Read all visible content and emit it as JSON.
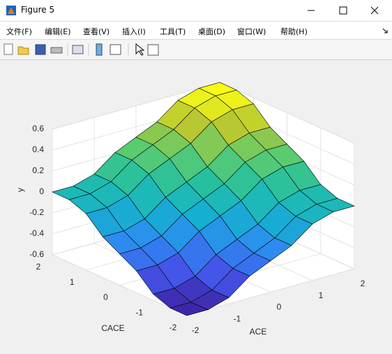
{
  "window": {
    "title": "Figure 5",
    "menu": [
      "文件(F)",
      "编辑(E)",
      "查看(V)",
      "插入(I)",
      "工具(T)",
      "桌面(D)",
      "窗口(W)",
      "帮助(H)"
    ]
  },
  "chart_data": {
    "type": "surface",
    "xlabel": "ACE",
    "ylabel": "CACE",
    "zlabel": "y",
    "x": [
      -2,
      -1.5,
      -1,
      -0.5,
      0,
      0.5,
      1,
      1.5,
      2
    ],
    "y": [
      -2,
      -1.5,
      -1,
      -0.5,
      0,
      0.5,
      1,
      1.5,
      2
    ],
    "z": [
      [
        -0.6,
        -0.6,
        -0.54,
        -0.39,
        -0.3,
        -0.21,
        -0.06,
        0,
        0
      ],
      [
        -0.6,
        -0.6,
        -0.54,
        -0.39,
        -0.3,
        -0.21,
        -0.06,
        0,
        0
      ],
      [
        -0.54,
        -0.54,
        -0.48,
        -0.33,
        -0.24,
        -0.15,
        0,
        0.06,
        0.06
      ],
      [
        -0.39,
        -0.39,
        -0.33,
        -0.18,
        -0.09,
        0,
        0.15,
        0.21,
        0.21
      ],
      [
        -0.3,
        -0.3,
        -0.24,
        -0.09,
        0,
        0.09,
        0.24,
        0.3,
        0.3
      ],
      [
        -0.21,
        -0.21,
        -0.15,
        0,
        0.09,
        0.18,
        0.33,
        0.39,
        0.39
      ],
      [
        -0.06,
        -0.06,
        0,
        0.15,
        0.24,
        0.33,
        0.48,
        0.54,
        0.54
      ],
      [
        0,
        0,
        0.06,
        0.21,
        0.3,
        0.39,
        0.54,
        0.6,
        0.6
      ],
      [
        0,
        0,
        0.06,
        0.21,
        0.3,
        0.39,
        0.54,
        0.6,
        0.6
      ]
    ],
    "xlim": [
      -2,
      2
    ],
    "ylim": [
      -2,
      2
    ],
    "zlim": [
      -0.6,
      0.6
    ],
    "xticks": [
      -2,
      -1,
      0,
      1,
      2
    ],
    "yticks": [
      -2,
      -1,
      0,
      1,
      2
    ],
    "zticks": [
      -0.6,
      -0.4,
      -0.2,
      0,
      0.2,
      0.4,
      0.6
    ],
    "colormap": [
      "#3e26a8",
      "#4358ec",
      "#2d8bf0",
      "#15b0d0",
      "#25c0a0",
      "#5ccb6f",
      "#b5c633",
      "#f9fb15"
    ],
    "grid": true,
    "edgecolor": "#000000"
  }
}
